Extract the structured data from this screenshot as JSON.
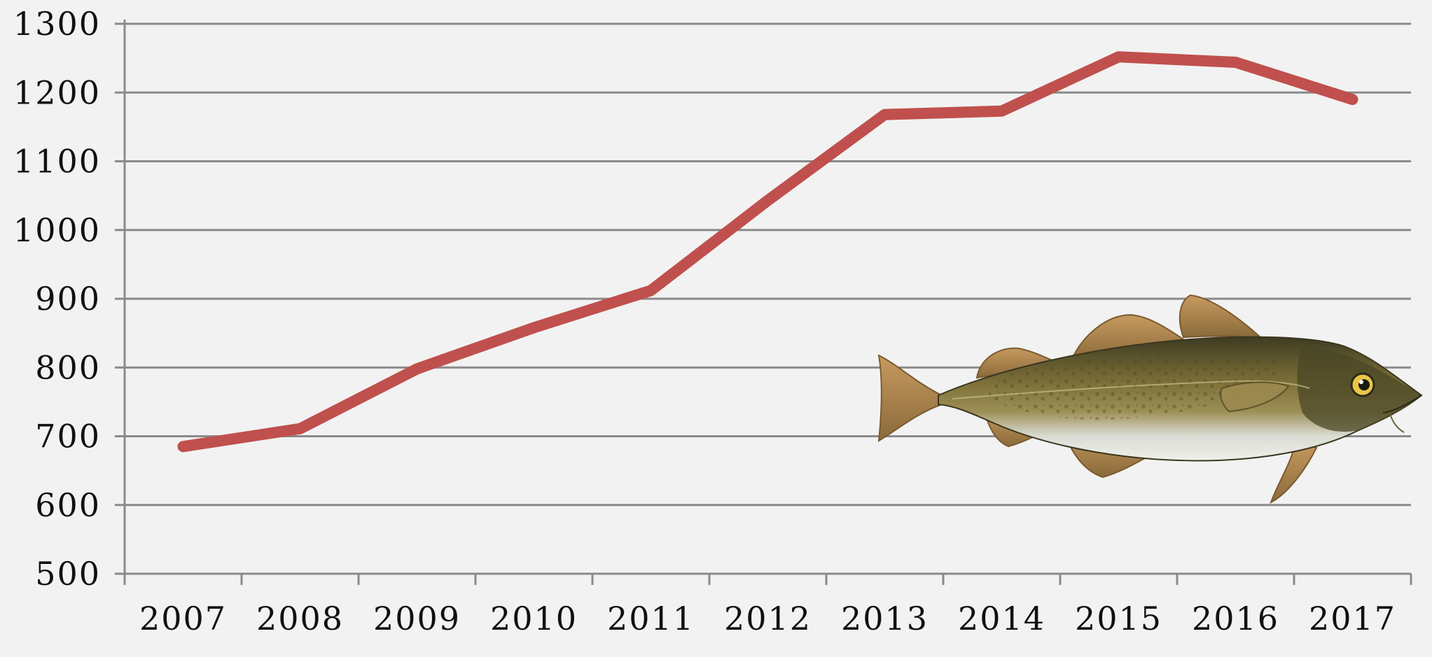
{
  "chart_data": {
    "type": "line",
    "title": "",
    "xlabel": "",
    "ylabel": "",
    "categories": [
      "2007",
      "2008",
      "2009",
      "2010",
      "2011",
      "2012",
      "2013",
      "2014",
      "2015",
      "2016",
      "2017"
    ],
    "series": [
      {
        "values": [
          685,
          711,
          798,
          858,
          912,
          1043,
          1168,
          1173,
          1252,
          1244,
          1190
        ],
        "color": "#c0504d"
      }
    ],
    "y_ticks": [
      "500",
      "600",
      "700",
      "800",
      "900",
      "1000",
      "1100",
      "1200",
      "1300"
    ],
    "ylim": [
      500,
      1300
    ],
    "grid": true,
    "legend": "none",
    "annotations": [
      {
        "type": "illustration",
        "icon": "cod-fish-icon"
      }
    ]
  }
}
